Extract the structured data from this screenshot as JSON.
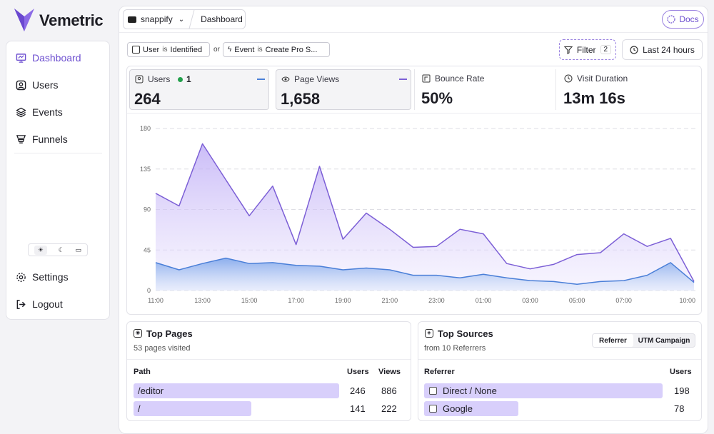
{
  "brand": "Vemetric",
  "nav": [
    "Dashboard",
    "Users",
    "Events",
    "Funnels"
  ],
  "nav_bottom": [
    "Settings",
    "Logout"
  ],
  "breadcrumb": {
    "project": "snappify",
    "page": "Dashboard"
  },
  "docs": "Docs",
  "filters": [
    {
      "field": "User",
      "op": "is",
      "value": "Identified"
    },
    {
      "join": "or"
    },
    {
      "field": "Event",
      "op": "is",
      "value": "Create Pro S..."
    }
  ],
  "filter_button": {
    "label": "Filter",
    "count": 2
  },
  "range": "Last 24 hours",
  "stats": [
    {
      "value": "264",
      "live": 1
    },
    {
      "value": "1,658"
    },
    {
      "label": "Bounce Rate",
      "value": "50%"
    },
    {
      "label": "Visit Duration",
      "value": "13m 16s"
    }
  ],
  "chart_data": {
    "type": "area",
    "categories": [
      "11:00",
      null,
      "13:00",
      null,
      "15:00",
      null,
      "17:00",
      null,
      "19:00",
      null,
      "21:00",
      null,
      "23:00",
      null,
      "01:00",
      null,
      "03:00",
      null,
      "05:00",
      null,
      "07:00",
      null,
      null,
      "10:00"
    ],
    "series": [
      {
        "name": "Users",
        "color": "#4a7fd8",
        "values": [
          31,
          23,
          30,
          36,
          30,
          31,
          28,
          27,
          23,
          25,
          23,
          17,
          17,
          14,
          18,
          14,
          11,
          10,
          7,
          10,
          11,
          17,
          31,
          9
        ]
      },
      {
        "name": "Page Views",
        "color": "#7c5fd6",
        "values": [
          108,
          94,
          163,
          123,
          83,
          116,
          51,
          138,
          57,
          86,
          68,
          48,
          49,
          68,
          63,
          30,
          24,
          29,
          40,
          42,
          63,
          49,
          58,
          10
        ]
      }
    ],
    "ylim": [
      0,
      180
    ],
    "yticks": [
      0,
      45,
      90,
      135,
      180
    ],
    "grid": true
  },
  "top_pages": {
    "title": "Top Pages",
    "subtitle": "53 pages visited",
    "columns": [
      "Path",
      "Users",
      "Views"
    ],
    "rows": [
      [
        "/editor",
        246,
        886
      ],
      [
        "/",
        141,
        222
      ]
    ]
  },
  "top_sources": {
    "title": "Top Sources",
    "subtitle": "from 10 Referrers",
    "tabs": [
      "Referrer",
      "UTM Campaign"
    ],
    "columns": [
      "Referrer",
      "Users"
    ],
    "rows": [
      [
        "Direct / None",
        198
      ],
      [
        "Google",
        78
      ]
    ]
  }
}
